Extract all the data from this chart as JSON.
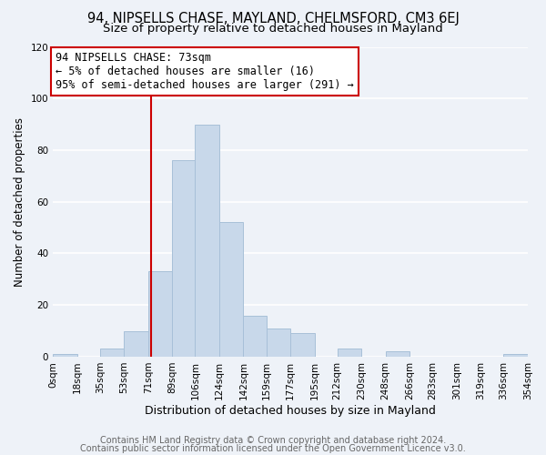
{
  "title1": "94, NIPSELLS CHASE, MAYLAND, CHELMSFORD, CM3 6EJ",
  "title2": "Size of property relative to detached houses in Mayland",
  "xlabel": "Distribution of detached houses by size in Mayland",
  "ylabel": "Number of detached properties",
  "bar_color": "#c8d8ea",
  "bar_edgecolor": "#a8c0d8",
  "bin_edges": [
    0,
    18,
    35,
    53,
    71,
    89,
    106,
    124,
    142,
    159,
    177,
    195,
    212,
    230,
    248,
    266,
    283,
    301,
    319,
    336,
    354
  ],
  "bin_labels": [
    "0sqm",
    "18sqm",
    "35sqm",
    "53sqm",
    "71sqm",
    "89sqm",
    "106sqm",
    "124sqm",
    "142sqm",
    "159sqm",
    "177sqm",
    "195sqm",
    "212sqm",
    "230sqm",
    "248sqm",
    "266sqm",
    "283sqm",
    "301sqm",
    "319sqm",
    "336sqm",
    "354sqm"
  ],
  "counts": [
    1,
    0,
    3,
    10,
    33,
    76,
    90,
    52,
    16,
    11,
    9,
    0,
    3,
    0,
    2,
    0,
    0,
    0,
    0,
    1
  ],
  "property_line_x": 73,
  "property_line_color": "#cc0000",
  "annotation_line1": "94 NIPSELLS CHASE: 73sqm",
  "annotation_line2": "← 5% of detached houses are smaller (16)",
  "annotation_line3": "95% of semi-detached houses are larger (291) →",
  "annotation_box_color": "#ffffff",
  "annotation_box_edgecolor": "#cc0000",
  "ylim": [
    0,
    120
  ],
  "yticks": [
    0,
    20,
    40,
    60,
    80,
    100,
    120
  ],
  "footer1": "Contains HM Land Registry data © Crown copyright and database right 2024.",
  "footer2": "Contains public sector information licensed under the Open Government Licence v3.0.",
  "background_color": "#eef2f8",
  "plot_bg_color": "#eef2f8",
  "grid_color": "#ffffff",
  "title1_fontsize": 10.5,
  "title2_fontsize": 9.5,
  "xlabel_fontsize": 9,
  "ylabel_fontsize": 8.5,
  "tick_fontsize": 7.5,
  "footer_fontsize": 7.0,
  "annot_fontsize": 8.5
}
